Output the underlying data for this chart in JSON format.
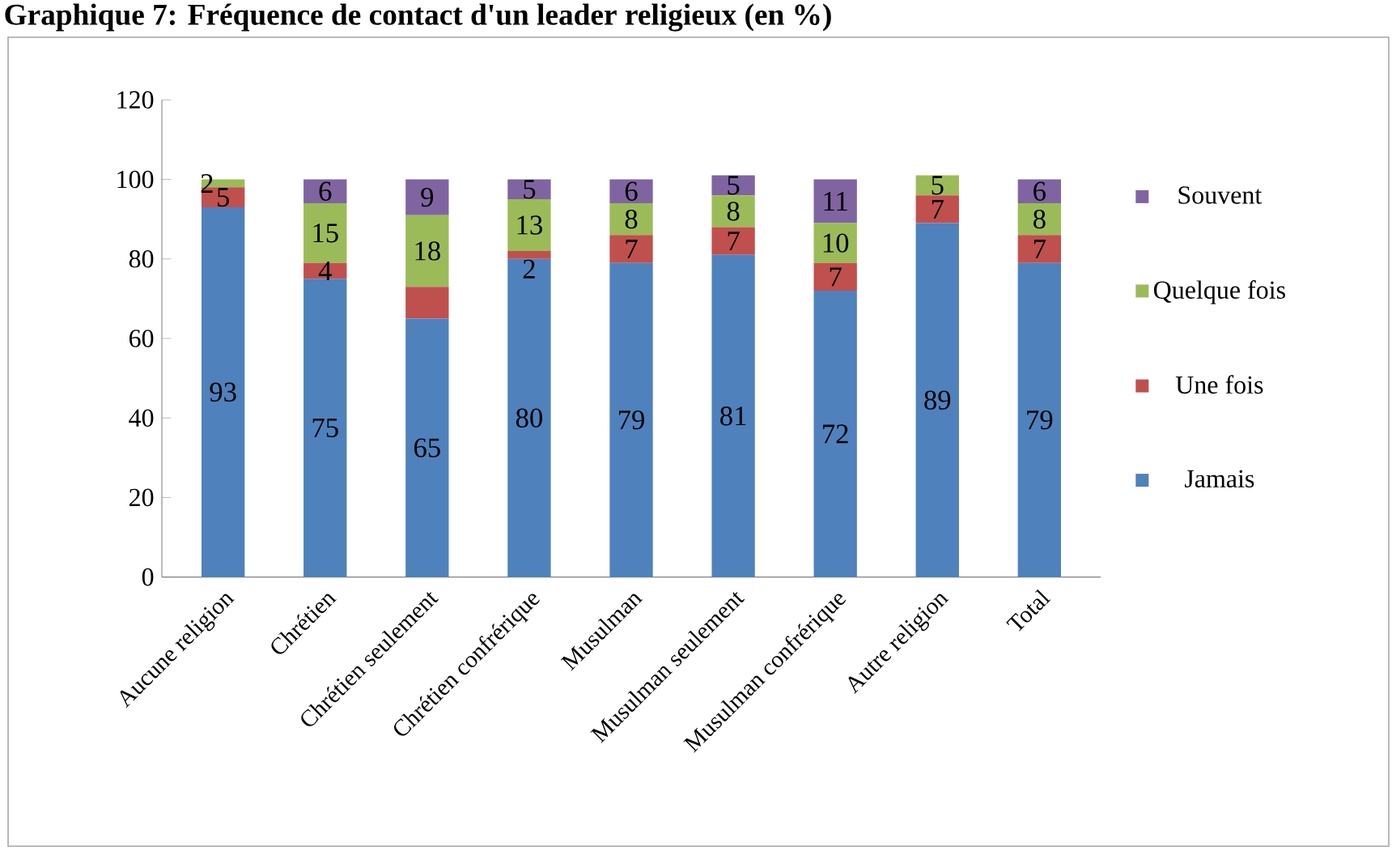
{
  "chart_data": {
    "type": "bar",
    "stacked": true,
    "title": "Graphique 7:      Fréquence de contact d'un leader religieux (en %)",
    "categories": [
      "Aucune religion",
      "Chrétien",
      "Chrétien seulement",
      "Chrétien confrérique",
      "Musulman",
      "Musulman seulement",
      "Musulman confrérique",
      "Autre religion",
      "Total"
    ],
    "series": [
      {
        "name": "Jamais",
        "color": "#4f81bd",
        "values": [
          93,
          75,
          65,
          80,
          79,
          81,
          72,
          89,
          79
        ],
        "value_labels": [
          "93",
          "75",
          "65",
          "80",
          "79",
          "81",
          "72",
          "89",
          "79"
        ]
      },
      {
        "name": "Une fois",
        "color": "#c0504d",
        "values": [
          5,
          4,
          8,
          2,
          7,
          7,
          7,
          7,
          7
        ],
        "value_labels": [
          "5",
          "4",
          null,
          "2",
          "7",
          "7",
          "7",
          "7",
          "7"
        ]
      },
      {
        "name": "Quelque fois",
        "color": "#9bbb59",
        "values": [
          2,
          15,
          18,
          13,
          8,
          8,
          10,
          5,
          8
        ],
        "value_labels": [
          "2",
          "15",
          "18",
          "13",
          "8",
          "8",
          "10",
          "5",
          "8"
        ]
      },
      {
        "name": "Souvent",
        "color": "#8064a2",
        "values": [
          0,
          6,
          9,
          5,
          6,
          5,
          11,
          0,
          6
        ],
        "value_labels": [
          null,
          "6",
          "9",
          "5",
          "6",
          "5",
          "11",
          null,
          "6"
        ]
      }
    ],
    "ylim": [
      0,
      120
    ],
    "yticks": [
      0,
      20,
      40,
      60,
      80,
      100,
      120
    ],
    "grid": false,
    "legend": "right"
  }
}
